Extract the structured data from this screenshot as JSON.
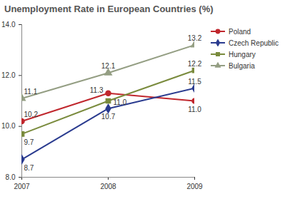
{
  "chart_data": {
    "type": "line",
    "title": "Unemployment Rate in European Countries (%)",
    "categories": [
      "2007",
      "2008",
      "2009"
    ],
    "series": [
      {
        "name": "Poland",
        "color": "#c0272d",
        "marker": "circle",
        "values": [
          10.2,
          11.3,
          11.0
        ],
        "value_labels": [
          "10.2",
          "11.3",
          "11.0"
        ]
      },
      {
        "name": "Czech Republic",
        "color": "#2a3b8f",
        "marker": "diamond",
        "values": [
          8.7,
          10.7,
          11.5
        ],
        "value_labels": [
          "8.7",
          "10.7",
          "11.5"
        ]
      },
      {
        "name": "Hungary",
        "color": "#7a8b3d",
        "marker": "square",
        "values": [
          9.7,
          11.0,
          12.2
        ],
        "value_labels": [
          "9.7",
          "11.0",
          "12.2"
        ]
      },
      {
        "name": "Bulgaria",
        "color": "#949e83",
        "marker": "triangle",
        "values": [
          11.1,
          12.1,
          13.2
        ],
        "value_labels": [
          "11.1",
          "12.1",
          "13.2"
        ]
      }
    ],
    "ylim": [
      8,
      14
    ],
    "yticks": [
      8,
      10,
      12,
      14
    ],
    "grid": false,
    "legend": "top-right",
    "data_labels": true
  }
}
